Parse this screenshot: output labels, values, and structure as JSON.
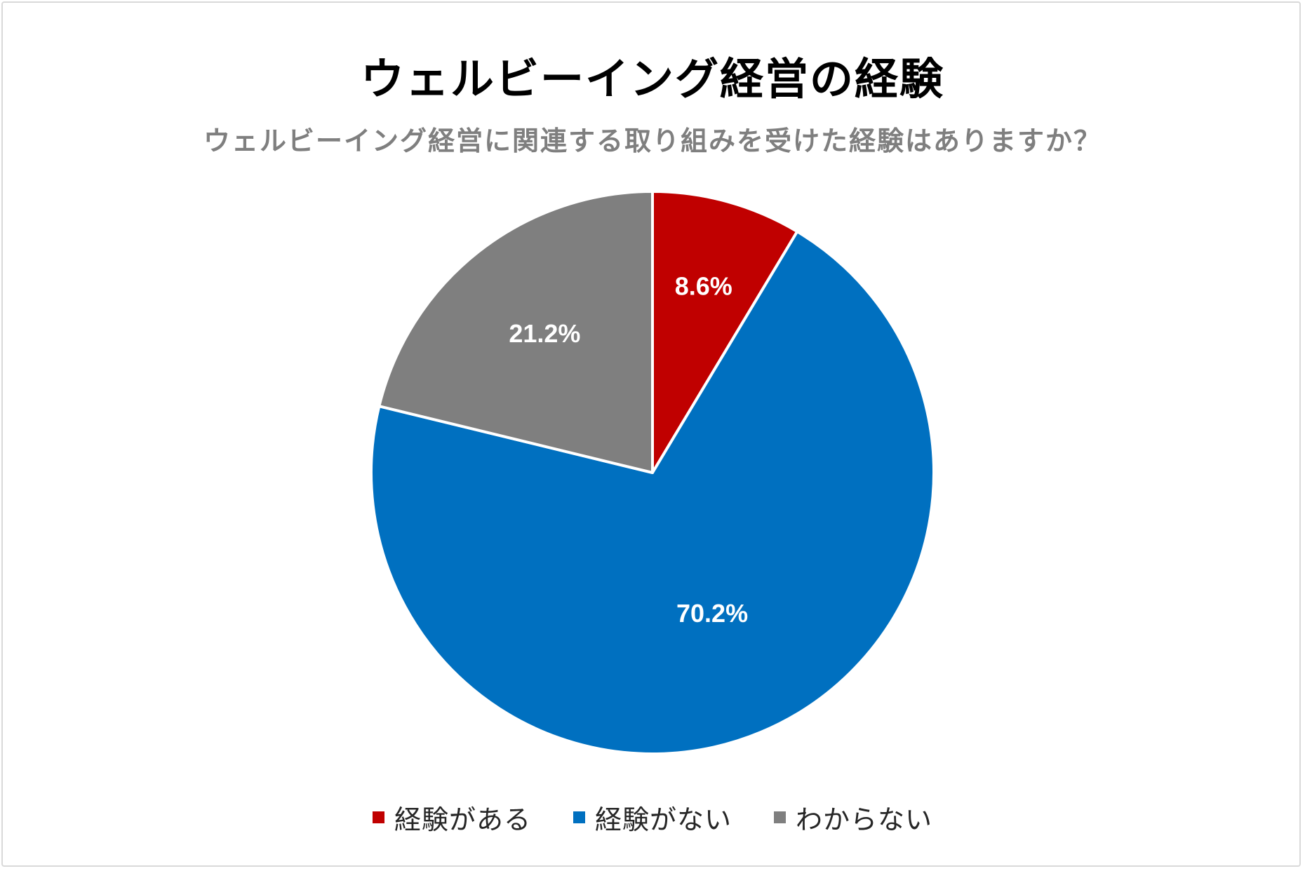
{
  "chart_data": {
    "type": "pie",
    "title": "ウェルビーイング経営の経験",
    "subtitle": "ウェルビーイング経営に関連する取り組みを受けた経験はありますか？",
    "slices": [
      {
        "name": "経験がある",
        "value": 8.6,
        "label": "8.6%",
        "color": "#c00000"
      },
      {
        "name": "経験がない",
        "value": 70.2,
        "label": "70.2%",
        "color": "#0070c0"
      },
      {
        "name": "わからない",
        "value": 21.2,
        "label": "21.2%",
        "color": "#7f7f7f"
      }
    ],
    "legend_position": "bottom",
    "start_angle": "12 o'clock",
    "direction": "clockwise"
  }
}
